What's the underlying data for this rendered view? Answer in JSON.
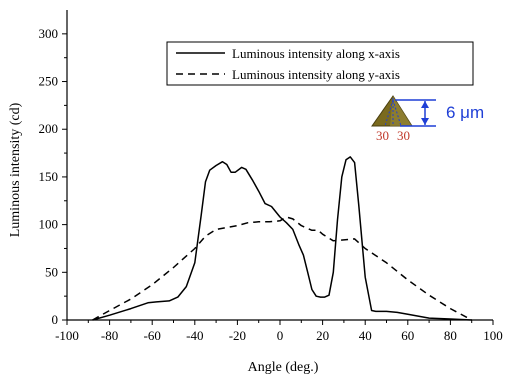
{
  "chart_data": {
    "type": "line",
    "title": "",
    "xlabel": "Angle (deg.)",
    "ylabel": "Luminous intensity (cd)",
    "xlim": [
      -100,
      100
    ],
    "ylim": [
      0,
      325
    ],
    "xticks": [
      -100,
      -80,
      -60,
      -40,
      -20,
      0,
      20,
      40,
      60,
      80,
      100
    ],
    "yticks": [
      0,
      50,
      100,
      150,
      200,
      250,
      300
    ],
    "grid": false,
    "legend_position": "top-right",
    "series": [
      {
        "name": "Luminous intensity along x-axis",
        "style": "solid",
        "color": "#000000",
        "x": [
          -88,
          -80,
          -70,
          -62,
          -58,
          -52,
          -48,
          -44,
          -40,
          -37,
          -35,
          -33,
          -30,
          -27,
          -25,
          -23,
          -21,
          -18,
          -16,
          -13,
          -10,
          -7,
          -4,
          0,
          3,
          6,
          9,
          11,
          13,
          15,
          17,
          19,
          21,
          23,
          25,
          27,
          29,
          31,
          33,
          35,
          37,
          40,
          43,
          45,
          50,
          55,
          60,
          70,
          80,
          90
        ],
        "y": [
          0,
          5,
          12,
          18,
          19,
          20,
          24,
          35,
          60,
          110,
          145,
          157,
          162,
          166,
          163,
          155,
          155,
          160,
          158,
          147,
          135,
          122,
          119,
          108,
          102,
          95,
          78,
          68,
          50,
          32,
          25,
          24,
          24,
          26,
          50,
          105,
          150,
          168,
          171,
          165,
          120,
          45,
          10,
          9,
          9,
          8,
          6,
          2,
          1,
          0
        ]
      },
      {
        "name": "Luminous intensity along y-axis",
        "style": "dashed",
        "color": "#000000",
        "x": [
          -88,
          -80,
          -70,
          -60,
          -50,
          -40,
          -35,
          -30,
          -25,
          -20,
          -15,
          -10,
          -5,
          0,
          3,
          6,
          10,
          15,
          18,
          20,
          25,
          30,
          35,
          40,
          50,
          60,
          70,
          80,
          90
        ],
        "y": [
          0,
          10,
          22,
          37,
          55,
          75,
          88,
          95,
          97,
          99,
          102,
          103,
          103,
          104,
          108,
          106,
          99,
          94,
          94,
          90,
          83,
          84,
          85,
          75,
          60,
          42,
          26,
          12,
          0
        ]
      }
    ],
    "annotations": {
      "dimension_label": "6 μm",
      "angle_labels": [
        "30",
        "30"
      ]
    }
  },
  "colors": {
    "axis": "#000000",
    "annotation_blue": "#1f3fd6",
    "annotation_red": "#c0392b",
    "cone_fill": "#7a6a1e"
  }
}
